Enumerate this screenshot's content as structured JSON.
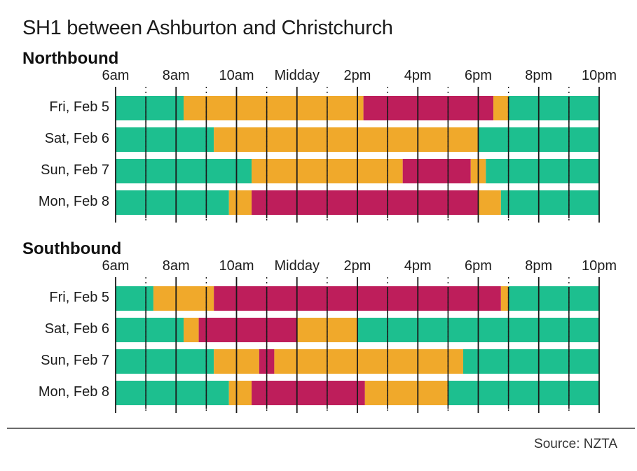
{
  "chart_data": {
    "type": "timeline",
    "title": "SH1 between Ashburton and Christchurch",
    "source": "Source: NZTA",
    "x_range_hours": [
      6,
      22
    ],
    "tick_labels": [
      {
        "hour": 6,
        "label": "6am"
      },
      {
        "hour": 8,
        "label": "8am"
      },
      {
        "hour": 10,
        "label": "10am"
      },
      {
        "hour": 12,
        "label": "Midday"
      },
      {
        "hour": 14,
        "label": "2pm"
      },
      {
        "hour": 16,
        "label": "4pm"
      },
      {
        "hour": 18,
        "label": "6pm"
      },
      {
        "hour": 20,
        "label": "8pm"
      },
      {
        "hour": 22,
        "label": "10pm"
      }
    ],
    "colors": {
      "green": "#1dbf8f",
      "orange": "#f0a92b",
      "red": "#be1e5b"
    },
    "sections": [
      {
        "name": "Northbound",
        "rows": [
          {
            "label": "Fri, Feb 5",
            "segments": [
              {
                "start": 6,
                "end": 8.25,
                "color": "green"
              },
              {
                "start": 8.25,
                "end": 14.2,
                "color": "orange"
              },
              {
                "start": 14.2,
                "end": 18.5,
                "color": "red"
              },
              {
                "start": 18.5,
                "end": 19.0,
                "color": "orange"
              },
              {
                "start": 19.0,
                "end": 22,
                "color": "green"
              }
            ]
          },
          {
            "label": "Sat, Feb 6",
            "segments": [
              {
                "start": 6,
                "end": 9.25,
                "color": "green"
              },
              {
                "start": 9.25,
                "end": 18.0,
                "color": "orange"
              },
              {
                "start": 18.0,
                "end": 22,
                "color": "green"
              }
            ]
          },
          {
            "label": "Sun, Feb 7",
            "segments": [
              {
                "start": 6,
                "end": 10.5,
                "color": "green"
              },
              {
                "start": 10.5,
                "end": 15.5,
                "color": "orange"
              },
              {
                "start": 15.5,
                "end": 17.75,
                "color": "red"
              },
              {
                "start": 17.75,
                "end": 18.25,
                "color": "orange"
              },
              {
                "start": 18.25,
                "end": 22,
                "color": "green"
              }
            ]
          },
          {
            "label": "Mon, Feb 8",
            "segments": [
              {
                "start": 6,
                "end": 9.75,
                "color": "green"
              },
              {
                "start": 9.75,
                "end": 10.5,
                "color": "orange"
              },
              {
                "start": 10.5,
                "end": 18.0,
                "color": "red"
              },
              {
                "start": 18.0,
                "end": 18.75,
                "color": "orange"
              },
              {
                "start": 18.75,
                "end": 22,
                "color": "green"
              }
            ]
          }
        ]
      },
      {
        "name": "Southbound",
        "rows": [
          {
            "label": "Fri, Feb 5",
            "segments": [
              {
                "start": 6,
                "end": 7.25,
                "color": "green"
              },
              {
                "start": 7.25,
                "end": 9.25,
                "color": "orange"
              },
              {
                "start": 9.25,
                "end": 18.75,
                "color": "red"
              },
              {
                "start": 18.75,
                "end": 19.0,
                "color": "orange"
              },
              {
                "start": 19.0,
                "end": 22,
                "color": "green"
              }
            ]
          },
          {
            "label": "Sat, Feb 6",
            "segments": [
              {
                "start": 6,
                "end": 8.25,
                "color": "green"
              },
              {
                "start": 8.25,
                "end": 8.75,
                "color": "orange"
              },
              {
                "start": 8.75,
                "end": 12.0,
                "color": "red"
              },
              {
                "start": 12.0,
                "end": 14.0,
                "color": "orange"
              },
              {
                "start": 14.0,
                "end": 22,
                "color": "green"
              }
            ]
          },
          {
            "label": "Sun, Feb 7",
            "segments": [
              {
                "start": 6,
                "end": 9.25,
                "color": "green"
              },
              {
                "start": 9.25,
                "end": 10.75,
                "color": "orange"
              },
              {
                "start": 10.75,
                "end": 11.25,
                "color": "red"
              },
              {
                "start": 11.25,
                "end": 17.5,
                "color": "orange"
              },
              {
                "start": 17.5,
                "end": 22,
                "color": "green"
              }
            ]
          },
          {
            "label": "Mon, Feb 8",
            "segments": [
              {
                "start": 6,
                "end": 9.75,
                "color": "green"
              },
              {
                "start": 9.75,
                "end": 10.5,
                "color": "orange"
              },
              {
                "start": 10.5,
                "end": 14.25,
                "color": "red"
              },
              {
                "start": 14.25,
                "end": 17.0,
                "color": "orange"
              },
              {
                "start": 17.0,
                "end": 22,
                "color": "green"
              }
            ]
          }
        ]
      }
    ]
  }
}
